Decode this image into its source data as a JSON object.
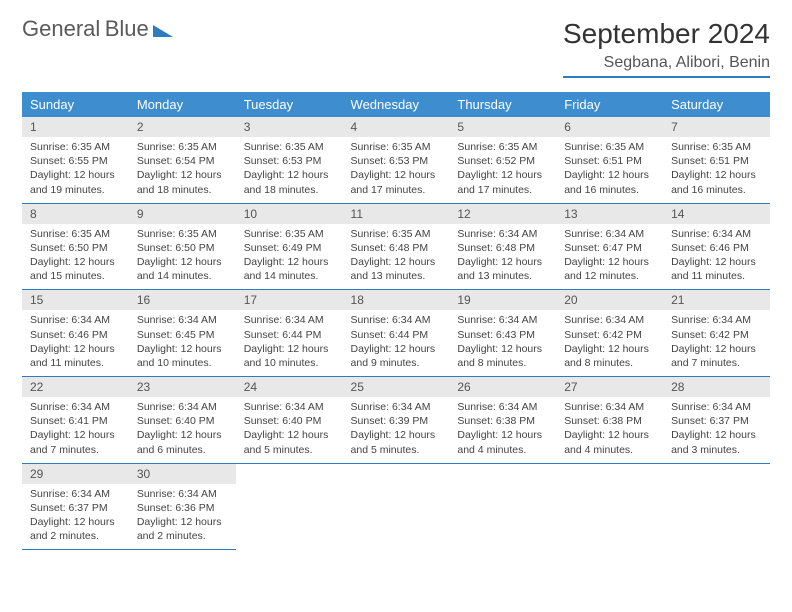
{
  "logo": {
    "line1": "General",
    "line2": "Blue"
  },
  "title": "September 2024",
  "location": "Segbana, Alibori, Benin",
  "headers": [
    "Sunday",
    "Monday",
    "Tuesday",
    "Wednesday",
    "Thursday",
    "Friday",
    "Saturday"
  ],
  "colors": {
    "header_bg": "#3e8ecf",
    "header_text": "#ffffff",
    "daynum_bg": "#e8e8e8",
    "border": "#2f7bbf"
  },
  "weeks": [
    [
      {
        "n": "1",
        "sr": "6:35 AM",
        "ss": "6:55 PM",
        "dl": "12 hours and 19 minutes."
      },
      {
        "n": "2",
        "sr": "6:35 AM",
        "ss": "6:54 PM",
        "dl": "12 hours and 18 minutes."
      },
      {
        "n": "3",
        "sr": "6:35 AM",
        "ss": "6:53 PM",
        "dl": "12 hours and 18 minutes."
      },
      {
        "n": "4",
        "sr": "6:35 AM",
        "ss": "6:53 PM",
        "dl": "12 hours and 17 minutes."
      },
      {
        "n": "5",
        "sr": "6:35 AM",
        "ss": "6:52 PM",
        "dl": "12 hours and 17 minutes."
      },
      {
        "n": "6",
        "sr": "6:35 AM",
        "ss": "6:51 PM",
        "dl": "12 hours and 16 minutes."
      },
      {
        "n": "7",
        "sr": "6:35 AM",
        "ss": "6:51 PM",
        "dl": "12 hours and 16 minutes."
      }
    ],
    [
      {
        "n": "8",
        "sr": "6:35 AM",
        "ss": "6:50 PM",
        "dl": "12 hours and 15 minutes."
      },
      {
        "n": "9",
        "sr": "6:35 AM",
        "ss": "6:50 PM",
        "dl": "12 hours and 14 minutes."
      },
      {
        "n": "10",
        "sr": "6:35 AM",
        "ss": "6:49 PM",
        "dl": "12 hours and 14 minutes."
      },
      {
        "n": "11",
        "sr": "6:35 AM",
        "ss": "6:48 PM",
        "dl": "12 hours and 13 minutes."
      },
      {
        "n": "12",
        "sr": "6:34 AM",
        "ss": "6:48 PM",
        "dl": "12 hours and 13 minutes."
      },
      {
        "n": "13",
        "sr": "6:34 AM",
        "ss": "6:47 PM",
        "dl": "12 hours and 12 minutes."
      },
      {
        "n": "14",
        "sr": "6:34 AM",
        "ss": "6:46 PM",
        "dl": "12 hours and 11 minutes."
      }
    ],
    [
      {
        "n": "15",
        "sr": "6:34 AM",
        "ss": "6:46 PM",
        "dl": "12 hours and 11 minutes."
      },
      {
        "n": "16",
        "sr": "6:34 AM",
        "ss": "6:45 PM",
        "dl": "12 hours and 10 minutes."
      },
      {
        "n": "17",
        "sr": "6:34 AM",
        "ss": "6:44 PM",
        "dl": "12 hours and 10 minutes."
      },
      {
        "n": "18",
        "sr": "6:34 AM",
        "ss": "6:44 PM",
        "dl": "12 hours and 9 minutes."
      },
      {
        "n": "19",
        "sr": "6:34 AM",
        "ss": "6:43 PM",
        "dl": "12 hours and 8 minutes."
      },
      {
        "n": "20",
        "sr": "6:34 AM",
        "ss": "6:42 PM",
        "dl": "12 hours and 8 minutes."
      },
      {
        "n": "21",
        "sr": "6:34 AM",
        "ss": "6:42 PM",
        "dl": "12 hours and 7 minutes."
      }
    ],
    [
      {
        "n": "22",
        "sr": "6:34 AM",
        "ss": "6:41 PM",
        "dl": "12 hours and 7 minutes."
      },
      {
        "n": "23",
        "sr": "6:34 AM",
        "ss": "6:40 PM",
        "dl": "12 hours and 6 minutes."
      },
      {
        "n": "24",
        "sr": "6:34 AM",
        "ss": "6:40 PM",
        "dl": "12 hours and 5 minutes."
      },
      {
        "n": "25",
        "sr": "6:34 AM",
        "ss": "6:39 PM",
        "dl": "12 hours and 5 minutes."
      },
      {
        "n": "26",
        "sr": "6:34 AM",
        "ss": "6:38 PM",
        "dl": "12 hours and 4 minutes."
      },
      {
        "n": "27",
        "sr": "6:34 AM",
        "ss": "6:38 PM",
        "dl": "12 hours and 4 minutes."
      },
      {
        "n": "28",
        "sr": "6:34 AM",
        "ss": "6:37 PM",
        "dl": "12 hours and 3 minutes."
      }
    ],
    [
      {
        "n": "29",
        "sr": "6:34 AM",
        "ss": "6:37 PM",
        "dl": "12 hours and 2 minutes."
      },
      {
        "n": "30",
        "sr": "6:34 AM",
        "ss": "6:36 PM",
        "dl": "12 hours and 2 minutes."
      },
      null,
      null,
      null,
      null,
      null
    ]
  ],
  "labels": {
    "sunrise": "Sunrise:",
    "sunset": "Sunset:",
    "daylight": "Daylight:"
  }
}
